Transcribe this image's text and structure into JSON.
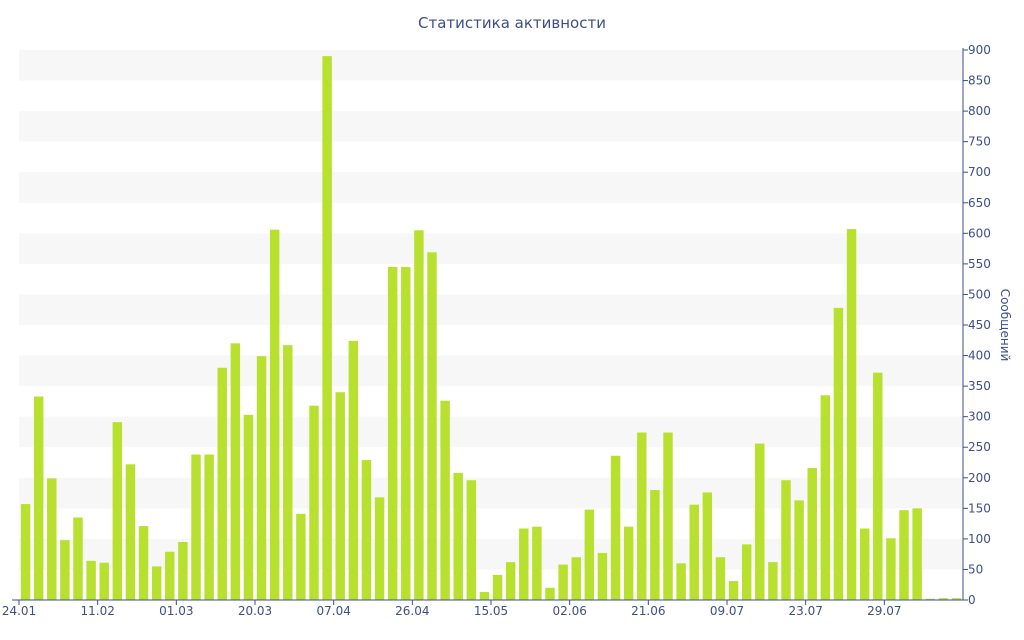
{
  "chart_data": {
    "type": "bar",
    "title": "Статистика активности",
    "ylabel": "Сообщений",
    "xlabel": "",
    "ylim": [
      0,
      900
    ],
    "y_ticks": [
      0,
      50,
      100,
      150,
      200,
      250,
      300,
      350,
      400,
      450,
      500,
      550,
      600,
      650,
      700,
      750,
      800,
      850,
      900
    ],
    "y_axis_position": "right",
    "grid": "alternating horizontal bands",
    "bar_color": "#b8e02e",
    "axis_color": "#3d4f86",
    "band_color": "#f7f7f7",
    "x_labels": [
      {
        "index": 0,
        "label": "24.01"
      },
      {
        "index": 6,
        "label": "11.02"
      },
      {
        "index": 12,
        "label": "01.03"
      },
      {
        "index": 18,
        "label": "20.03"
      },
      {
        "index": 24,
        "label": "07.04"
      },
      {
        "index": 30,
        "label": "26.04"
      },
      {
        "index": 36,
        "label": "15.05"
      },
      {
        "index": 42,
        "label": "02.06"
      },
      {
        "index": 48,
        "label": "21.06"
      },
      {
        "index": 54,
        "label": "09.07"
      },
      {
        "index": 60,
        "label": "23.07"
      },
      {
        "index": 66,
        "label": "29.07"
      }
    ],
    "values": [
      157,
      333,
      199,
      98,
      135,
      64,
      61,
      291,
      222,
      121,
      55,
      79,
      95,
      238,
      238,
      380,
      420,
      303,
      399,
      606,
      417,
      141,
      318,
      890,
      340,
      424,
      229,
      168,
      545,
      545,
      605,
      569,
      326,
      208,
      196,
      13,
      41,
      62,
      117,
      120,
      20,
      58,
      70,
      148,
      77,
      236,
      120,
      274,
      180,
      274,
      60,
      156,
      176,
      70,
      31,
      91,
      256,
      62,
      196,
      163,
      216,
      335,
      478,
      607,
      117,
      372,
      101,
      147,
      150,
      2,
      3,
      3
    ]
  }
}
